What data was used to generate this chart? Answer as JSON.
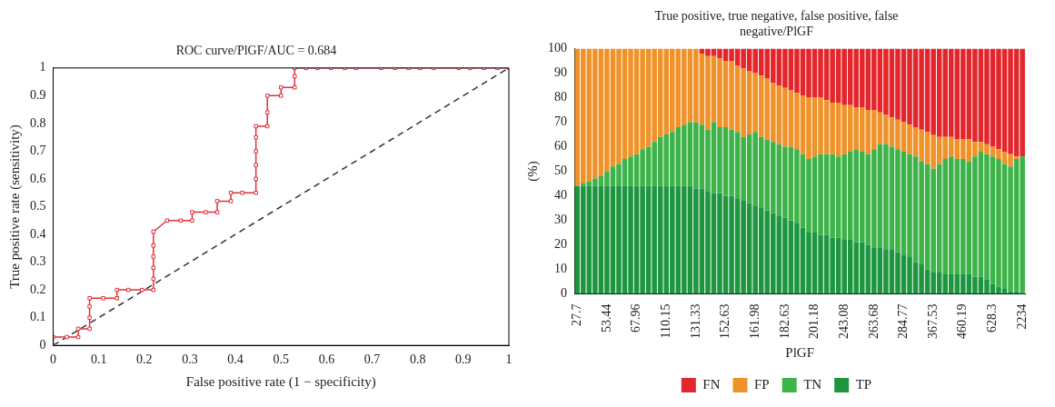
{
  "chart_data": [
    {
      "type": "line",
      "title": "ROC curve/PlGF/AUC = 0.684",
      "xlabel": "False positive rate (1 − specificity)",
      "ylabel": "True positive rate (sensitivity)",
      "xlim": [
        0,
        1
      ],
      "ylim": [
        0,
        1
      ],
      "xticks": [
        0,
        0.1,
        0.2,
        0.3,
        0.4,
        0.5,
        0.6,
        0.7,
        0.8,
        0.9,
        1
      ],
      "yticks": [
        0,
        0.1,
        0.2,
        0.3,
        0.4,
        0.5,
        0.6,
        0.7,
        0.8,
        0.9,
        1
      ],
      "grid": false,
      "legend": false,
      "series": [
        {
          "color": "#e0303a",
          "marker": "square",
          "line_style": "solid",
          "x": [
            0,
            0,
            0.03,
            0.055,
            0.055,
            0.08,
            0.08,
            0.08,
            0.08,
            0.11,
            0.14,
            0.14,
            0.165,
            0.195,
            0.22,
            0.22,
            0.22,
            0.22,
            0.22,
            0.22,
            0.25,
            0.28,
            0.305,
            0.305,
            0.335,
            0.36,
            0.36,
            0.39,
            0.39,
            0.415,
            0.445,
            0.445,
            0.445,
            0.445,
            0.445,
            0.445,
            0.47,
            0.47,
            0.47,
            0.5,
            0.5,
            0.53,
            0.53,
            0.53,
            0.555,
            0.58,
            0.61,
            0.64,
            0.665,
            0.72,
            0.75,
            0.78,
            0.805,
            0.835,
            0.89,
            0.915,
            0.945,
            0.975,
            1
          ],
          "values": [
            0,
            0.03,
            0.03,
            0.03,
            0.06,
            0.06,
            0.1,
            0.14,
            0.17,
            0.17,
            0.17,
            0.2,
            0.2,
            0.2,
            0.2,
            0.24,
            0.28,
            0.32,
            0.36,
            0.41,
            0.45,
            0.45,
            0.45,
            0.48,
            0.48,
            0.48,
            0.52,
            0.52,
            0.55,
            0.55,
            0.55,
            0.6,
            0.65,
            0.7,
            0.75,
            0.79,
            0.79,
            0.84,
            0.9,
            0.9,
            0.93,
            0.93,
            0.97,
            1,
            1,
            1,
            1,
            1,
            1,
            1,
            1,
            1,
            1,
            1,
            1,
            1,
            1,
            1,
            1
          ]
        },
        {
          "color": "#333333",
          "marker": "none",
          "line_style": "dashed",
          "x": [
            0,
            1
          ],
          "values": [
            0,
            1
          ]
        }
      ]
    },
    {
      "type": "bar",
      "stacked": true,
      "title": "True positive, true negative, false positive, false negative/PlGF",
      "xlabel": "PlGF",
      "ylabel": "(%)",
      "ylim": [
        0,
        100
      ],
      "yticks": [
        0,
        10,
        20,
        30,
        40,
        50,
        60,
        70,
        80,
        90,
        100
      ],
      "grid": false,
      "legend": "bottom",
      "categories": [
        "27.7",
        null,
        null,
        null,
        null,
        "53.44",
        null,
        null,
        null,
        null,
        "67.96",
        null,
        null,
        null,
        null,
        "110.15",
        null,
        null,
        null,
        null,
        "131.33",
        null,
        null,
        null,
        null,
        "152.63",
        null,
        null,
        null,
        null,
        "161.98",
        null,
        null,
        null,
        null,
        "182.63",
        null,
        null,
        null,
        null,
        "201.18",
        null,
        null,
        null,
        null,
        "243.08",
        null,
        null,
        null,
        null,
        "263.68",
        null,
        null,
        null,
        null,
        "284.77",
        null,
        null,
        null,
        null,
        "367.53",
        null,
        null,
        null,
        null,
        "460.19",
        null,
        null,
        null,
        null,
        "628.3",
        null,
        null,
        null,
        null,
        "2234"
      ],
      "series": [
        {
          "name": "TP",
          "color": "#1e9640",
          "values": [
            44,
            44,
            44,
            44,
            44,
            44,
            44,
            44,
            44,
            44,
            44,
            44,
            44,
            44,
            44,
            44,
            44,
            44,
            44,
            44,
            43,
            43,
            42,
            41,
            41,
            40,
            40,
            39,
            38,
            37,
            36,
            35,
            34,
            33,
            32,
            31,
            30,
            29,
            27,
            25,
            25,
            24,
            24,
            23,
            23,
            22,
            22,
            21,
            21,
            20,
            19,
            19,
            18,
            18,
            17,
            16,
            15,
            13,
            12,
            10,
            9,
            9,
            8,
            8,
            8,
            8,
            8,
            7,
            7,
            6,
            4,
            3,
            2,
            1,
            1,
            0
          ]
        },
        {
          "name": "TN",
          "color": "#3db34a",
          "values": [
            0,
            1,
            2,
            3,
            4,
            6,
            8,
            9,
            11,
            12,
            13,
            15,
            16,
            18,
            20,
            21,
            22,
            24,
            25,
            26,
            27,
            26,
            25,
            29,
            27,
            28,
            27,
            27,
            26,
            28,
            30,
            29,
            29,
            29,
            29,
            29,
            30,
            30,
            30,
            30,
            31,
            33,
            33,
            34,
            33,
            35,
            36,
            38,
            37,
            37,
            40,
            42,
            43,
            42,
            42,
            42,
            42,
            43,
            42,
            43,
            42,
            44,
            47,
            48,
            47,
            47,
            46,
            49,
            51,
            51,
            52,
            52,
            51,
            51,
            54,
            56
          ]
        },
        {
          "name": "FP",
          "color": "#f0922a",
          "values": [
            56,
            55,
            54,
            53,
            52,
            50,
            48,
            47,
            45,
            44,
            43,
            41,
            40,
            38,
            36,
            35,
            34,
            32,
            31,
            30,
            30,
            29,
            30,
            27,
            28,
            27,
            28,
            27,
            28,
            26,
            24,
            25,
            25,
            24,
            24,
            24,
            23,
            23,
            24,
            25,
            24,
            23,
            22,
            21,
            22,
            20,
            19,
            17,
            18,
            18,
            16,
            13,
            12,
            12,
            12,
            12,
            12,
            12,
            13,
            13,
            14,
            11,
            9,
            8,
            8,
            8,
            9,
            6,
            4,
            4,
            4,
            4,
            5,
            5,
            1,
            0
          ]
        },
        {
          "name": "FN",
          "color": "#e3262b",
          "values": [
            0,
            0,
            0,
            0,
            0,
            0,
            0,
            0,
            0,
            0,
            0,
            0,
            0,
            0,
            0,
            0,
            0,
            0,
            0,
            0,
            0,
            2,
            3,
            3,
            4,
            5,
            5,
            7,
            8,
            9,
            10,
            11,
            12,
            14,
            15,
            16,
            17,
            18,
            19,
            20,
            20,
            20,
            21,
            22,
            22,
            23,
            23,
            24,
            24,
            25,
            25,
            26,
            27,
            28,
            29,
            30,
            31,
            32,
            33,
            34,
            35,
            36,
            36,
            36,
            37,
            37,
            37,
            38,
            38,
            39,
            40,
            41,
            42,
            43,
            44,
            44
          ]
        }
      ]
    }
  ]
}
